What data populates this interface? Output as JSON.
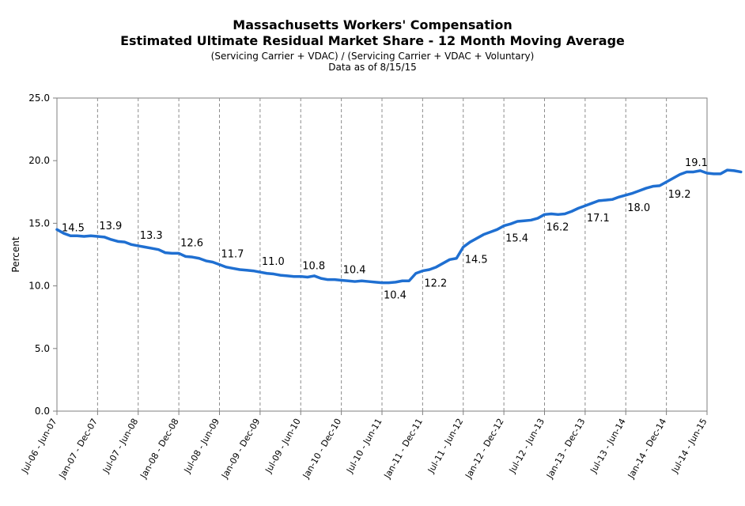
{
  "chart_data": {
    "type": "line",
    "title": "Massachusetts Workers' Compensation",
    "subtitle": "Estimated Ultimate Residual Market Share - 12 Month Moving Average",
    "subtitle2": "(Servicing Carrier + VDAC) / (Servicing Carrier + VDAC + Voluntary)",
    "note": "Data as of 8/15/15",
    "ylabel": "Percent",
    "xlabel": "",
    "ylim": [
      0,
      25
    ],
    "yticks": [
      "0.0",
      "5.0",
      "10.0",
      "15.0",
      "20.0",
      "25.0"
    ],
    "grid": "vertical dashed",
    "line_color": "#1f6fd1",
    "x_tick_labels": [
      "Jul-06 - Jun-07",
      "Jan-07 - Dec-07",
      "Jul-07 - Jun-08",
      "Jan-08 - Dec-08",
      "Jul-08 - Jun-09",
      "Jan-09 - Dec-09",
      "Jul-09 - Jun-10",
      "Jan-10 - Dec-10",
      "Jul-10 - Jun-11",
      "Jan-11 - Dec-11",
      "Jul-11 - Jun-12",
      "Jan-12 - Dec-12",
      "Jul-12 - Jun-13",
      "Jan-13 - Dec-13",
      "Jul-13 - Jun-14",
      "Jan-14 - Dec-14",
      "Jul-14 - Jun-15"
    ],
    "values": [
      14.5,
      14.2,
      14.0,
      14.0,
      13.95,
      14.0,
      13.95,
      13.9,
      13.7,
      13.55,
      13.5,
      13.3,
      13.2,
      13.1,
      13.0,
      12.9,
      12.65,
      12.6,
      12.6,
      12.35,
      12.3,
      12.2,
      12.0,
      11.9,
      11.7,
      11.5,
      11.4,
      11.3,
      11.25,
      11.2,
      11.1,
      11.0,
      10.95,
      10.85,
      10.8,
      10.75,
      10.75,
      10.7,
      10.8,
      10.6,
      10.5,
      10.5,
      10.45,
      10.4,
      10.35,
      10.4,
      10.35,
      10.3,
      10.25,
      10.25,
      10.3,
      10.4,
      10.4,
      11.0,
      11.2,
      11.3,
      11.5,
      11.8,
      12.1,
      12.2,
      13.1,
      13.5,
      13.8,
      14.1,
      14.3,
      14.5,
      14.8,
      14.95,
      15.15,
      15.2,
      15.25,
      15.4,
      15.7,
      15.75,
      15.7,
      15.75,
      15.95,
      16.2,
      16.4,
      16.6,
      16.8,
      16.85,
      16.9,
      17.1,
      17.25,
      17.4,
      17.6,
      17.8,
      17.95,
      18.0,
      18.3,
      18.6,
      18.9,
      19.1,
      19.1,
      19.2,
      19.0,
      18.95,
      18.95,
      19.25,
      19.2,
      19.1
    ],
    "data_labels": [
      {
        "index": 0,
        "text": "14.5",
        "pos": "right"
      },
      {
        "index": 12,
        "text": "13.9",
        "pos": "above"
      },
      {
        "index": 24,
        "text": "13.3",
        "pos": "above"
      },
      {
        "index": 36,
        "text": "12.6",
        "pos": "above"
      },
      {
        "index": 48,
        "text": "11.7",
        "pos": "above"
      },
      {
        "index": 60,
        "text": "11.0",
        "pos": "above"
      },
      {
        "index": 72,
        "text": "10.8",
        "pos": "above"
      },
      {
        "index": 84,
        "text": "10.4",
        "pos": "above"
      },
      {
        "index": 96,
        "text": "10.4",
        "pos": "below"
      },
      {
        "index": 108,
        "text": "12.2",
        "pos": "below"
      },
      {
        "index": 120,
        "text": "14.5",
        "pos": "below"
      },
      {
        "index": 132,
        "text": "15.4",
        "pos": "below"
      },
      {
        "index": 144,
        "text": "16.2",
        "pos": "below"
      },
      {
        "index": 156,
        "text": "17.1",
        "pos": "below"
      },
      {
        "index": 168,
        "text": "18.0",
        "pos": "below"
      },
      {
        "index": 180,
        "text": "19.2",
        "pos": "below"
      },
      {
        "index": 192,
        "text": "19.1",
        "pos": "above"
      }
    ]
  }
}
